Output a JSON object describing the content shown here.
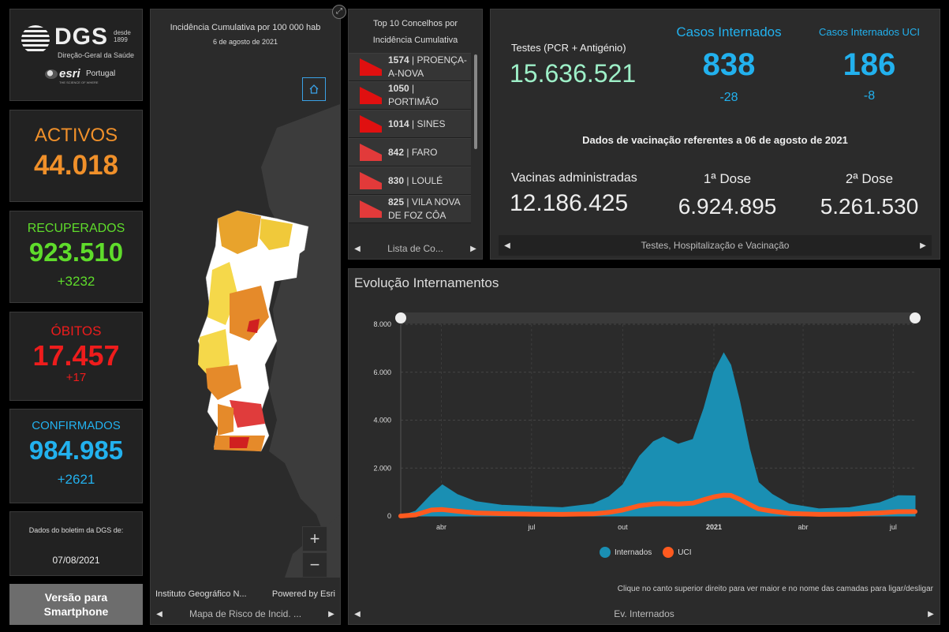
{
  "logo": {
    "dgs": "DGS",
    "since_top": "desde",
    "since_year": "1899",
    "subtitle": "Direção-Geral da Saúde",
    "esri": "esri",
    "esri_country": "Portugal",
    "esri_tag": "THE SCIENCE OF WHERE"
  },
  "stats": {
    "activos": {
      "label": "ACTIVOS",
      "value": "44.018",
      "color": "#f0902a"
    },
    "recuperados": {
      "label": "RECUPERADOS",
      "value": "923.510",
      "delta": "+3232",
      "color": "#5fdc2b"
    },
    "obitos": {
      "label": "ÓBITOS",
      "value": "17.457",
      "delta": "+17",
      "color": "#ee1c1c"
    },
    "confirmados": {
      "label": "CONFIRMADOS",
      "value": "984.985",
      "delta": "+2621",
      "color": "#22b1ee"
    }
  },
  "boletim": {
    "label": "Dados do boletim da DGS de:",
    "date": "07/08/2021"
  },
  "smartphone": {
    "line1": "Versão para",
    "line2": "Smartphone"
  },
  "map": {
    "title": "Incidência Cumulativa por 100 000 hab",
    "subtitle": "6 de agosto de 2021",
    "attribution_left": "Instituto Geográfico N...",
    "attribution_right": "Powered by Esri",
    "nav_label": "Mapa de Risco de Incid. ...",
    "zoom_in": "+",
    "zoom_out": "−"
  },
  "top10": {
    "title_line1": "Top 10 Concelhos por",
    "title_line2": "Incidência Cumulativa",
    "items": [
      {
        "value": "1574",
        "name": "PROENÇA-A-NOVA",
        "line1": "PROENÇA-",
        "line2": "A-NOVA",
        "color": "#e01010"
      },
      {
        "value": "1050",
        "name": "PORTIMÃO",
        "line1": "",
        "line2": "PORTIMÃO",
        "color": "#e01010"
      },
      {
        "value": "1014",
        "name": "SINES",
        "line1": "SINES",
        "line2": "",
        "color": "#e01010"
      },
      {
        "value": "842",
        "name": "FARO",
        "line1": "FARO",
        "line2": "",
        "color": "#e23a3a"
      },
      {
        "value": "830",
        "name": "LOULÉ",
        "line1": "LOULÉ",
        "line2": "",
        "color": "#e23a3a"
      },
      {
        "value": "825",
        "name": "VILA NOVA DE FOZ CÔA",
        "line1": "VILA NOVA",
        "line2": "DE FOZ CÔA",
        "color": "#e23a3a"
      }
    ],
    "nav_label": "Lista de Co..."
  },
  "panel_stats": {
    "testes_label": "Testes (PCR + Antigénio)",
    "testes_value": "15.636.521",
    "internados_label": "Casos Internados",
    "internados_value": "838",
    "internados_delta": "-28",
    "uci_label": "Casos Internados UCI",
    "uci_value": "186",
    "uci_delta": "-8",
    "vac_header": "Dados de vacinação referentes a 06 de agosto de 2021",
    "vac_label": "Vacinas administradas",
    "vac_value": "12.186.425",
    "dose1_label": "1ª Dose",
    "dose1_value": "6.924.895",
    "dose2_label": "2ª Dose",
    "dose2_value": "5.261.530",
    "nav_label": "Testes, Hospitalização e Vacinação",
    "accent": "#22b1ee",
    "testes_color": "#9ef0c8"
  },
  "chart_panel": {
    "title": "Evolução Internamentos",
    "note": "Clique no canto superior direito para ver maior e no nome das camadas para ligar/desligar",
    "nav_label": "Ev. Internados",
    "legend": [
      "Internados",
      "UCI"
    ]
  },
  "chart_data": {
    "type": "area",
    "x_tick_labels": [
      "abr",
      "jul",
      "out",
      "2021",
      "abr",
      "jul"
    ],
    "y_tick_labels": [
      "0",
      "2.000",
      "4.000",
      "6.000",
      "8.000"
    ],
    "ylim": [
      0,
      8000
    ],
    "grid": true,
    "legend_position": "bottom-center",
    "series": [
      {
        "name": "Internados",
        "color": "#1a8fb3",
        "x": [
          "2020-03-05",
          "2020-03-20",
          "2020-04-05",
          "2020-04-16",
          "2020-05-01",
          "2020-05-20",
          "2020-06-15",
          "2020-07-15",
          "2020-08-15",
          "2020-09-15",
          "2020-10-01",
          "2020-10-15",
          "2020-11-01",
          "2020-11-15",
          "2020-11-25",
          "2020-12-10",
          "2020-12-25",
          "2021-01-05",
          "2021-01-15",
          "2021-01-25",
          "2021-02-01",
          "2021-02-10",
          "2021-02-20",
          "2021-03-01",
          "2021-03-15",
          "2021-04-01",
          "2021-05-01",
          "2021-06-01",
          "2021-07-01",
          "2021-07-20",
          "2021-08-06"
        ],
        "values": [
          0,
          200,
          900,
          1300,
          900,
          600,
          450,
          400,
          350,
          500,
          800,
          1300,
          2500,
          3100,
          3300,
          3000,
          3200,
          4500,
          6000,
          6800,
          6300,
          4800,
          2800,
          1400,
          900,
          500,
          300,
          350,
          550,
          850,
          840
        ]
      },
      {
        "name": "UCI",
        "color": "#ff5a1f",
        "x": [
          "2020-03-05",
          "2020-03-20",
          "2020-04-05",
          "2020-04-16",
          "2020-05-01",
          "2020-05-20",
          "2020-06-15",
          "2020-07-15",
          "2020-08-15",
          "2020-09-15",
          "2020-10-01",
          "2020-10-15",
          "2020-11-01",
          "2020-11-15",
          "2020-11-25",
          "2020-12-10",
          "2020-12-25",
          "2021-01-05",
          "2021-01-15",
          "2021-01-25",
          "2021-02-01",
          "2021-02-10",
          "2021-02-20",
          "2021-03-01",
          "2021-03-15",
          "2021-04-01",
          "2021-05-01",
          "2021-06-01",
          "2021-07-01",
          "2021-07-20",
          "2021-08-06"
        ],
        "values": [
          0,
          50,
          250,
          270,
          200,
          130,
          100,
          80,
          70,
          90,
          150,
          250,
          430,
          500,
          520,
          500,
          540,
          680,
          800,
          870,
          860,
          700,
          480,
          300,
          200,
          110,
          70,
          80,
          130,
          180,
          186
        ]
      }
    ]
  }
}
